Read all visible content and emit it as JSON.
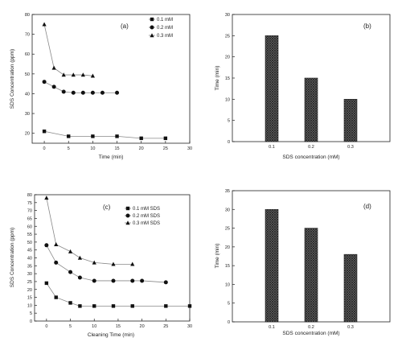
{
  "colors": {
    "axis": "#222222",
    "marker": "#111111",
    "line": "#888888",
    "bar_fill": "#777777",
    "bar_hatch": "#222222",
    "background": "#ffffff"
  },
  "chart_data": [
    {
      "id": "a",
      "type": "line",
      "panel_label": "(a)",
      "xlabel": "Time (min)",
      "ylabel": "SDS Concentration (ppm)",
      "xlim": [
        -2.5,
        30
      ],
      "ylim": [
        15,
        80
      ],
      "xticks": [
        0,
        5,
        10,
        15,
        20,
        25,
        30
      ],
      "yticks": [
        20,
        30,
        40,
        50,
        60,
        70,
        80
      ],
      "legend_position": "top-right",
      "series": [
        {
          "name": "0.1 mM",
          "marker": "square",
          "x": [
            0,
            5,
            10,
            15,
            20,
            25
          ],
          "y": [
            21,
            18.5,
            18.5,
            18.5,
            17.5,
            17.5
          ]
        },
        {
          "name": "0.2 mM",
          "marker": "circle",
          "x": [
            0,
            2,
            4,
            6,
            8,
            10,
            12,
            15
          ],
          "y": [
            46,
            43.5,
            41,
            40.5,
            40.5,
            40.5,
            40.5,
            40.5
          ]
        },
        {
          "name": "0.3 mM",
          "marker": "triangle",
          "x": [
            0,
            2,
            4,
            6,
            8,
            10
          ],
          "y": [
            75,
            53,
            49.5,
            49.5,
            49.5,
            49
          ]
        }
      ]
    },
    {
      "id": "b",
      "type": "bar",
      "panel_label": "(b)",
      "xlabel": "SDS concentration (mM)",
      "ylabel": "Time (min)",
      "ylim": [
        0,
        30
      ],
      "yticks": [
        0,
        5,
        10,
        15,
        20,
        25,
        30
      ],
      "categories": [
        "0.1",
        "0.2",
        "0.3"
      ],
      "values": [
        25,
        15,
        10
      ]
    },
    {
      "id": "c",
      "type": "line",
      "panel_label": "(c)",
      "xlabel": "Cleaning Time (min)",
      "ylabel": "SDS Concentration (ppm)",
      "xlim": [
        -2.5,
        30
      ],
      "ylim": [
        0,
        80
      ],
      "xticks": [
        0,
        5,
        10,
        15,
        20,
        25,
        30
      ],
      "yticks": [
        0,
        5,
        10,
        15,
        20,
        25,
        30,
        35,
        40,
        45,
        50,
        55,
        60,
        65,
        70,
        75,
        80
      ],
      "legend_position": "top-right",
      "series": [
        {
          "name": "0.1 mM SDS",
          "marker": "square",
          "x": [
            0,
            2,
            5,
            7,
            10,
            14,
            18,
            25,
            30
          ],
          "y": [
            24,
            15,
            11.5,
            9.5,
            9.5,
            9.5,
            9.5,
            9.5,
            9.5
          ]
        },
        {
          "name": "0.2 mM SDS",
          "marker": "circle",
          "x": [
            0,
            2,
            5,
            7,
            10,
            14,
            18,
            20,
            25
          ],
          "y": [
            48,
            37,
            31,
            27.5,
            25.5,
            25.5,
            25.5,
            25.5,
            24.5
          ]
        },
        {
          "name": "0.3 mM SDS",
          "marker": "triangle",
          "x": [
            0,
            2,
            5,
            7,
            10,
            14,
            18
          ],
          "y": [
            78,
            48.5,
            44,
            40,
            37,
            36,
            36
          ]
        }
      ]
    },
    {
      "id": "d",
      "type": "bar",
      "panel_label": "(d)",
      "xlabel": "SDS concentration (mM)",
      "ylabel": "Time (min)",
      "ylim": [
        0,
        35
      ],
      "yticks": [
        0,
        5,
        10,
        15,
        20,
        25,
        30,
        35
      ],
      "categories": [
        "0.1",
        "0.2",
        "0.3"
      ],
      "values": [
        30,
        25,
        18
      ]
    }
  ]
}
